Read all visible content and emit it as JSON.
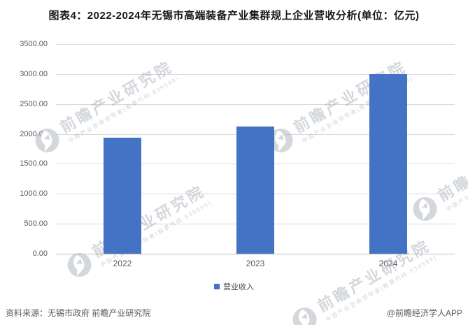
{
  "chart_data": {
    "type": "bar",
    "title": "图表4：2022-2024年无锡市高端装备产业集群规上企业营收分析(单位：亿元)",
    "categories": [
      "2022",
      "2023",
      "2024"
    ],
    "series": [
      {
        "name": "营业收入",
        "values": [
          1935,
          2123,
          3000
        ]
      }
    ],
    "unit": "亿元",
    "ylabel": "",
    "xlabel": "",
    "ylim": [
      0,
      3500
    ],
    "ytick_step": 500,
    "yticks": [
      "3500.00",
      "3000.00",
      "2500.00",
      "2000.00",
      "1500.00",
      "1000.00",
      "500.00",
      "0.00"
    ],
    "grid": "horizontal",
    "legend_position": "bottom",
    "bar_color": "#4472C4",
    "gridline_color": "#D9D9D9"
  },
  "legend": {
    "label": "营业收入",
    "marker_color": "#4472C4"
  },
  "footer": {
    "source": "资料来源：无锡市政府 前瞻产业研究院",
    "credit": "@前瞻经济学人APP"
  },
  "watermark": {
    "text": "前瞻产业研究院",
    "subtext": "中国产业咨询领导者(股票代码:839599)"
  }
}
